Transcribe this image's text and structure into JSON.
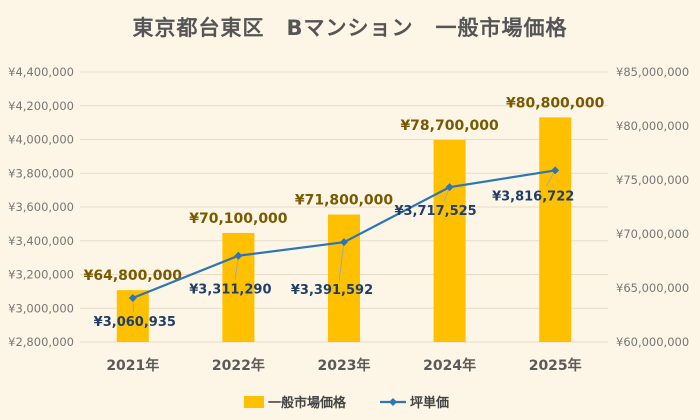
{
  "title": "東京都台東区　Bマンション　一般市場価格",
  "colors": {
    "background": "#fdf6e6",
    "bar": "#ffc000",
    "line": "#2e75b6",
    "grid": "#e6dcc8",
    "bar_label": "#7a5a00",
    "line_label": "#1f3f6a"
  },
  "chart_data": {
    "type": "bar",
    "categories": [
      "2021年",
      "2022年",
      "2023年",
      "2024年",
      "2025年"
    ],
    "series": [
      {
        "name": "一般市場価格",
        "type": "bar",
        "axis": "right",
        "values": [
          64800000,
          70100000,
          71800000,
          78700000,
          80800000
        ],
        "labels": [
          "¥64,800,000",
          "¥70,100,000",
          "¥71,800,000",
          "¥78,700,000",
          "¥80,800,000"
        ]
      },
      {
        "name": "坪単価",
        "type": "line",
        "axis": "left",
        "values": [
          3060935,
          3311290,
          3391592,
          3717525,
          3816722
        ],
        "labels": [
          "¥3,060,935",
          "¥3,311,290",
          "¥3,391,592",
          "¥3,717,525",
          "¥3,816,722"
        ]
      }
    ],
    "left_axis": {
      "range": [
        2800000,
        4400000
      ],
      "ticks": [
        "¥2,800,000",
        "¥3,000,000",
        "¥3,200,000",
        "¥3,400,000",
        "¥3,600,000",
        "¥3,800,000",
        "¥4,000,000",
        "¥4,200,000",
        "¥4,400,000"
      ]
    },
    "right_axis": {
      "range": [
        60000000,
        85000000
      ],
      "ticks": [
        "¥60,000,000",
        "¥65,000,000",
        "¥70,000,000",
        "¥75,000,000",
        "¥80,000,000",
        "¥85,000,000"
      ]
    },
    "grid": true,
    "legend_position": "bottom"
  }
}
